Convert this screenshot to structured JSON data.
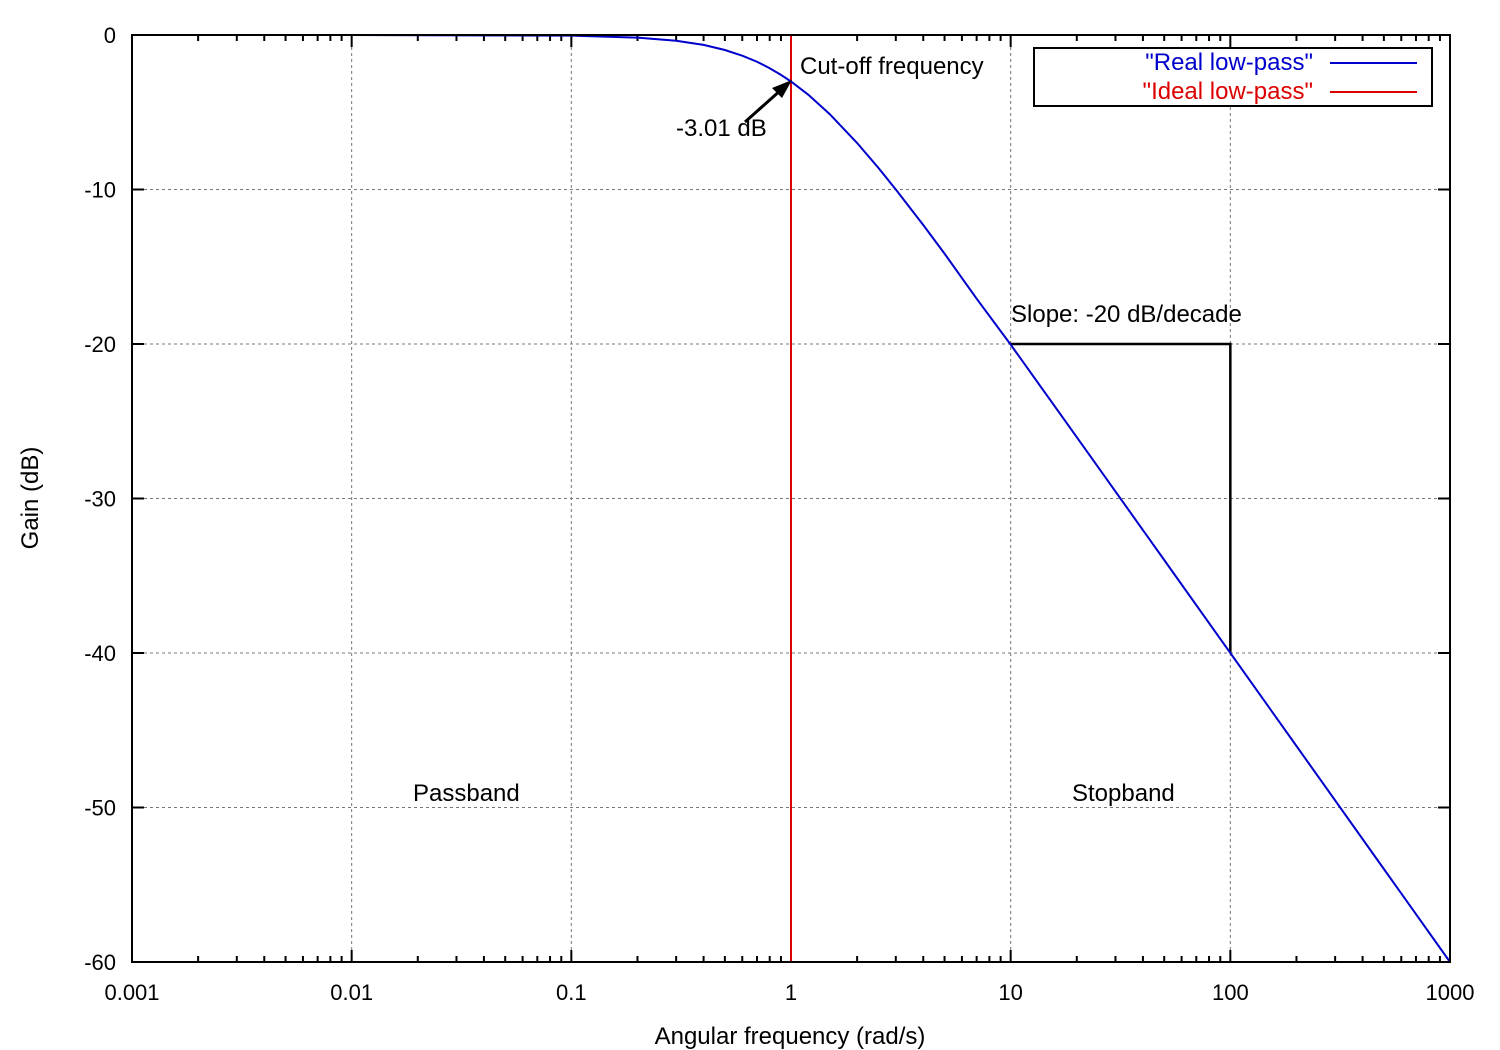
{
  "chart_data": {
    "type": "line",
    "xlabel": "Angular frequency (rad/s)",
    "ylabel": "Gain (dB)",
    "xscale": "log",
    "xlim": [
      0.001,
      1000
    ],
    "ylim": [
      -60,
      0
    ],
    "x_ticks": [
      0.001,
      0.01,
      0.1,
      1,
      10,
      100,
      1000
    ],
    "x_tick_labels": [
      "0.001",
      "0.01",
      "0.1",
      "1",
      "10",
      "100",
      "1000"
    ],
    "y_ticks": [
      0,
      -10,
      -20,
      -30,
      -40,
      -50,
      -60
    ],
    "y_tick_labels": [
      "0",
      "-10",
      "-20",
      "-30",
      "-40",
      "-50",
      "-60"
    ],
    "grid": true,
    "legend_position": "top-right",
    "series": [
      {
        "name": "\"Real low-pass\"",
        "color": "#0000cc",
        "x": [
          0.001,
          0.01,
          0.1,
          0.2,
          0.3,
          0.4,
          0.5,
          0.6,
          0.7,
          0.8,
          0.9,
          1,
          1.2,
          1.5,
          2,
          2.5,
          3,
          4,
          5,
          7,
          10,
          20,
          50,
          100,
          200,
          500,
          1000
        ],
        "values": [
          0,
          0,
          -0.04,
          -0.17,
          -0.37,
          -0.64,
          -0.97,
          -1.34,
          -1.73,
          -2.15,
          -2.58,
          -3.01,
          -3.87,
          -5.12,
          -6.99,
          -8.6,
          -10,
          -12.3,
          -14.15,
          -17.07,
          -20.04,
          -26.03,
          -33.98,
          -40,
          -46.02,
          -53.98,
          -60
        ]
      },
      {
        "name": "\"Ideal low-pass\"",
        "color": "#dd0000",
        "x": [
          0.001,
          1,
          1,
          1000
        ],
        "values": [
          0,
          0,
          -60,
          -60
        ]
      }
    ],
    "slope_box": {
      "x": [
        10,
        100
      ],
      "y": [
        -20,
        -40
      ]
    },
    "annotations": {
      "cutoff": "Cut-off frequency",
      "db3": "-3.01 dB",
      "slope": "Slope: -20 dB/decade",
      "passband": "Passband",
      "stopband": "Stopband"
    }
  }
}
